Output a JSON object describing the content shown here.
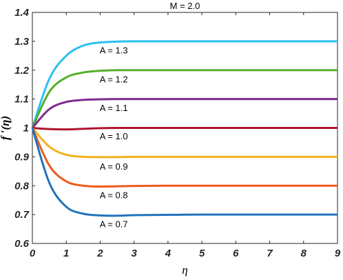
{
  "chart_data": {
    "type": "line",
    "title": "M = 2.0",
    "xlabel": "η",
    "ylabel": "f ′(η)",
    "xlim": [
      0,
      9
    ],
    "ylim": [
      0.6,
      1.4
    ],
    "x_ticks": [
      "0",
      "1",
      "2",
      "3",
      "4",
      "5",
      "6",
      "7",
      "8",
      "9"
    ],
    "y_ticks": [
      "0.6",
      "0.7",
      "0.8",
      "0.9",
      "1",
      "1.1",
      "1.2",
      "1.3",
      "1.4"
    ],
    "grid": false,
    "series": [
      {
        "name": "A = 1.3",
        "color": "#29c0f0",
        "x": [
          0,
          0.5,
          1,
          1.5,
          2,
          2.5,
          3,
          4,
          5,
          6,
          7,
          8,
          9
        ],
        "values": [
          1.0,
          1.17,
          1.25,
          1.285,
          1.296,
          1.299,
          1.3,
          1.3,
          1.3,
          1.3,
          1.3,
          1.3,
          1.3
        ],
        "label_at": [
          2.4,
          1.27
        ]
      },
      {
        "name": "A = 1.2",
        "color": "#55ae2a",
        "x": [
          0,
          0.5,
          1,
          1.5,
          2,
          2.5,
          3,
          4,
          5,
          6,
          7,
          8,
          9
        ],
        "values": [
          1.0,
          1.125,
          1.175,
          1.192,
          1.198,
          1.2,
          1.2,
          1.2,
          1.2,
          1.2,
          1.2,
          1.2,
          1.2
        ],
        "label_at": [
          2.4,
          1.17
        ]
      },
      {
        "name": "A = 1.1",
        "color": "#7e2a8e",
        "x": [
          0,
          0.5,
          1,
          1.5,
          2,
          2.5,
          3,
          4,
          5,
          6,
          7,
          8,
          9
        ],
        "values": [
          1.0,
          1.065,
          1.09,
          1.097,
          1.099,
          1.1,
          1.1,
          1.1,
          1.1,
          1.1,
          1.1,
          1.1,
          1.1
        ],
        "label_at": [
          2.4,
          1.07
        ]
      },
      {
        "name": "A = 1.0",
        "color": "#b01530",
        "x": [
          0,
          0.5,
          1,
          1.5,
          2,
          2.5,
          3,
          4,
          5,
          6,
          7,
          8,
          9
        ],
        "values": [
          1.0,
          0.996,
          0.995,
          0.997,
          0.999,
          1.0,
          1.0,
          1.0,
          1.0,
          1.0,
          1.0,
          1.0,
          1.0
        ],
        "label_at": [
          2.4,
          0.972
        ]
      },
      {
        "name": "A = 0.9",
        "color": "#f2b21c",
        "x": [
          0,
          0.5,
          1,
          1.5,
          2,
          2.5,
          3,
          4,
          5,
          6,
          7,
          8,
          9
        ],
        "values": [
          1.0,
          0.935,
          0.907,
          0.9,
          0.899,
          0.899,
          0.9,
          0.9,
          0.9,
          0.9,
          0.9,
          0.9,
          0.9
        ],
        "label_at": [
          2.4,
          0.868
        ]
      },
      {
        "name": "A = 0.8",
        "color": "#ee5a1c",
        "x": [
          0,
          0.5,
          1,
          1.5,
          2,
          2.5,
          3,
          4,
          5,
          6,
          7,
          8,
          9
        ],
        "values": [
          1.0,
          0.87,
          0.815,
          0.8,
          0.797,
          0.798,
          0.799,
          0.8,
          0.8,
          0.8,
          0.8,
          0.8,
          0.8
        ],
        "label_at": [
          2.4,
          0.768
        ]
      },
      {
        "name": "A = 0.7",
        "color": "#1f72bb",
        "x": [
          0,
          0.5,
          1,
          1.5,
          2,
          2.5,
          3,
          4,
          5,
          6,
          7,
          8,
          9
        ],
        "values": [
          1.0,
          0.81,
          0.727,
          0.703,
          0.697,
          0.696,
          0.698,
          0.699,
          0.7,
          0.7,
          0.7,
          0.7,
          0.7
        ],
        "label_at": [
          2.4,
          0.668
        ]
      }
    ]
  }
}
